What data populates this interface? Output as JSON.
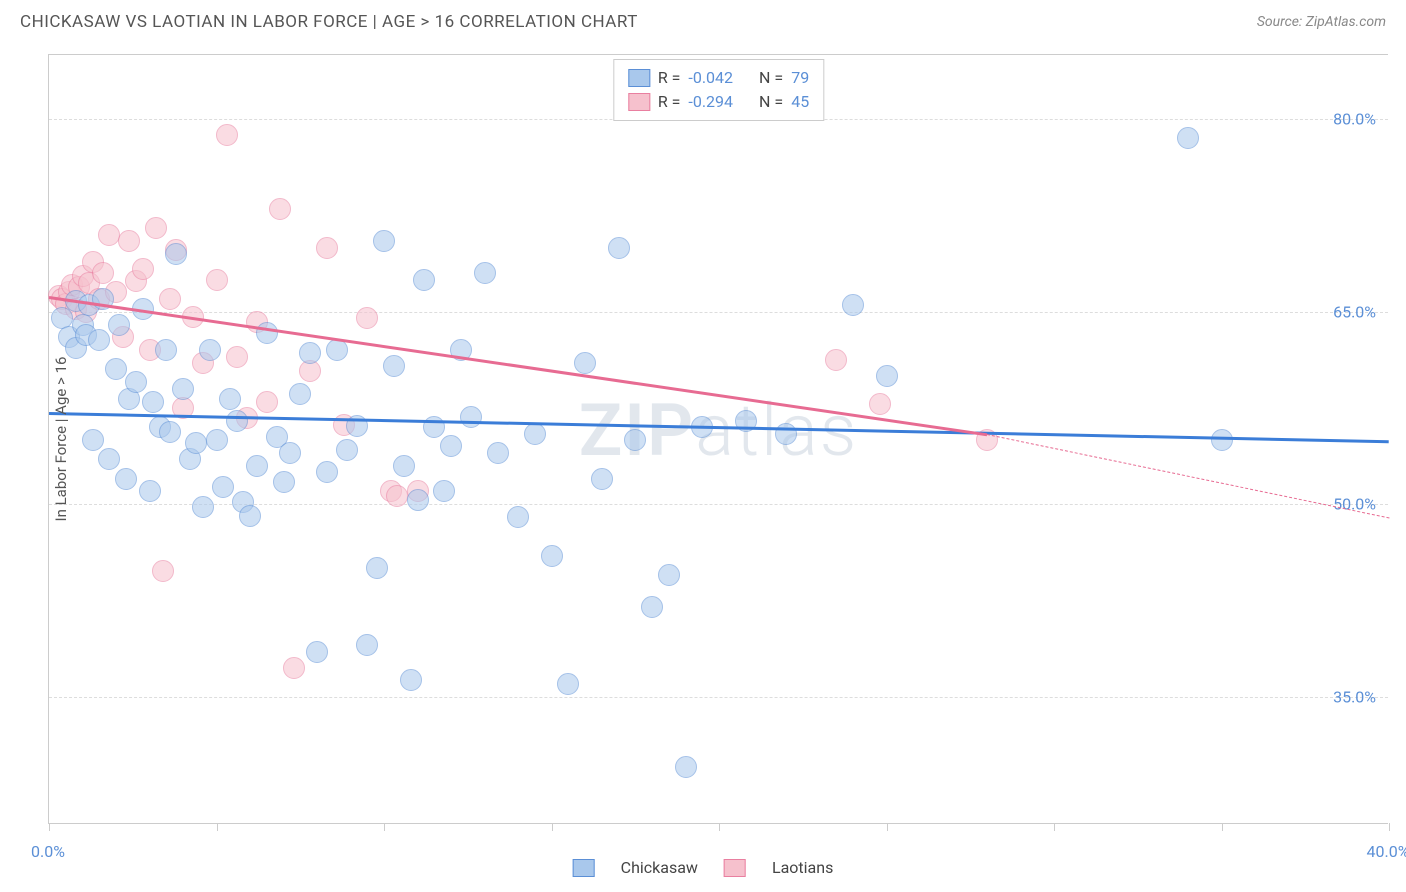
{
  "header": {
    "title": "CHICKASAW VS LAOTIAN IN LABOR FORCE | AGE > 16 CORRELATION CHART",
    "source": "Source: ZipAtlas.com"
  },
  "chart": {
    "type": "scatter",
    "ylabel": "In Labor Force | Age > 16",
    "watermark": "ZIPatlas",
    "background_color": "#ffffff",
    "grid_color": "#dddddd",
    "border_color": "#cccccc",
    "xlim": [
      0,
      40
    ],
    "ylim": [
      25,
      85
    ],
    "xticks": [
      0,
      5,
      10,
      15,
      20,
      25,
      30,
      35,
      40
    ],
    "xtick_labels": {
      "0": "0.0%",
      "40": "40.0%"
    },
    "yticks": [
      35,
      50,
      65,
      80
    ],
    "ytick_labels": {
      "35": "35.0%",
      "50": "50.0%",
      "65": "65.0%",
      "80": "80.0%"
    },
    "point_radius": 11,
    "point_opacity": 0.55,
    "series": {
      "chickasaw": {
        "label": "Chickasaw",
        "fill": "#a9c8ec",
        "stroke": "#5b8fd6",
        "trend_color": "#3b7dd8",
        "trend_width": 3,
        "R": "-0.042",
        "N": "79",
        "trend": {
          "x1": 0,
          "y1": 57.2,
          "x2": 40,
          "y2": 55.0
        },
        "points": [
          [
            0.4,
            64.5
          ],
          [
            0.6,
            63.0
          ],
          [
            0.8,
            65.8
          ],
          [
            0.8,
            62.2
          ],
          [
            1.0,
            64.0
          ],
          [
            1.1,
            63.2
          ],
          [
            1.2,
            65.5
          ],
          [
            1.3,
            55.0
          ],
          [
            1.5,
            62.8
          ],
          [
            1.6,
            66.0
          ],
          [
            1.8,
            53.5
          ],
          [
            2.0,
            60.5
          ],
          [
            2.1,
            64.0
          ],
          [
            2.3,
            52.0
          ],
          [
            2.4,
            58.2
          ],
          [
            2.6,
            59.5
          ],
          [
            2.8,
            65.2
          ],
          [
            3.0,
            51.0
          ],
          [
            3.1,
            58.0
          ],
          [
            3.3,
            56.0
          ],
          [
            3.5,
            62.0
          ],
          [
            3.6,
            55.6
          ],
          [
            3.8,
            69.5
          ],
          [
            4.0,
            59.0
          ],
          [
            4.2,
            53.5
          ],
          [
            4.4,
            54.8
          ],
          [
            4.6,
            49.8
          ],
          [
            4.8,
            62.0
          ],
          [
            5.0,
            55.0
          ],
          [
            5.2,
            51.3
          ],
          [
            5.4,
            58.2
          ],
          [
            5.6,
            56.5
          ],
          [
            5.8,
            50.2
          ],
          [
            6.0,
            49.1
          ],
          [
            6.2,
            53.0
          ],
          [
            6.5,
            63.3
          ],
          [
            6.8,
            55.2
          ],
          [
            7.0,
            51.7
          ],
          [
            7.2,
            54.0
          ],
          [
            7.5,
            58.6
          ],
          [
            7.8,
            61.8
          ],
          [
            8.0,
            38.5
          ],
          [
            8.3,
            52.5
          ],
          [
            8.6,
            62.0
          ],
          [
            8.9,
            54.2
          ],
          [
            9.2,
            56.1
          ],
          [
            9.5,
            39.0
          ],
          [
            9.8,
            45.0
          ],
          [
            10.0,
            70.5
          ],
          [
            10.3,
            60.8
          ],
          [
            10.6,
            53.0
          ],
          [
            10.8,
            36.3
          ],
          [
            11.0,
            50.3
          ],
          [
            11.2,
            67.5
          ],
          [
            11.5,
            56.0
          ],
          [
            11.8,
            51.0
          ],
          [
            12.0,
            54.5
          ],
          [
            12.3,
            62.0
          ],
          [
            12.6,
            56.8
          ],
          [
            13.0,
            68.0
          ],
          [
            13.4,
            54.0
          ],
          [
            14.0,
            49.0
          ],
          [
            14.5,
            55.5
          ],
          [
            15.0,
            46.0
          ],
          [
            15.5,
            36.0
          ],
          [
            16.0,
            61.0
          ],
          [
            16.5,
            52.0
          ],
          [
            17.0,
            70.0
          ],
          [
            17.5,
            55.0
          ],
          [
            18.0,
            42.0
          ],
          [
            18.5,
            44.5
          ],
          [
            19.0,
            29.5
          ],
          [
            19.5,
            56.0
          ],
          [
            20.8,
            56.5
          ],
          [
            22.0,
            55.5
          ],
          [
            24.0,
            65.5
          ],
          [
            25.0,
            60.0
          ],
          [
            34.0,
            78.5
          ],
          [
            35.0,
            55.0
          ]
        ]
      },
      "laotians": {
        "label": "Laotians",
        "fill": "#f6c1cd",
        "stroke": "#e97fa0",
        "trend_color": "#e76b92",
        "trend_width": 3,
        "R": "-0.294",
        "N": "45",
        "trend": {
          "x1": 0,
          "y1": 66.2,
          "x2": 28,
          "y2": 55.5
        },
        "trend_dash": {
          "x1": 28,
          "y1": 55.5,
          "x2": 40,
          "y2": 49.0
        },
        "points": [
          [
            0.3,
            66.2
          ],
          [
            0.4,
            66.0
          ],
          [
            0.5,
            65.6
          ],
          [
            0.6,
            66.5
          ],
          [
            0.7,
            67.1
          ],
          [
            0.8,
            65.2
          ],
          [
            0.9,
            66.9
          ],
          [
            1.0,
            67.8
          ],
          [
            1.1,
            65.0
          ],
          [
            1.2,
            67.2
          ],
          [
            1.3,
            68.9
          ],
          [
            1.5,
            66.0
          ],
          [
            1.6,
            68.0
          ],
          [
            1.8,
            71.0
          ],
          [
            2.0,
            66.5
          ],
          [
            2.2,
            63.0
          ],
          [
            2.4,
            70.5
          ],
          [
            2.6,
            67.4
          ],
          [
            2.8,
            68.3
          ],
          [
            3.0,
            62.0
          ],
          [
            3.2,
            71.5
          ],
          [
            3.4,
            44.8
          ],
          [
            3.6,
            66.0
          ],
          [
            3.8,
            69.8
          ],
          [
            4.0,
            57.5
          ],
          [
            4.3,
            64.6
          ],
          [
            4.6,
            61.0
          ],
          [
            5.0,
            67.5
          ],
          [
            5.3,
            78.8
          ],
          [
            5.6,
            61.5
          ],
          [
            5.9,
            56.7
          ],
          [
            6.2,
            64.2
          ],
          [
            6.5,
            58.0
          ],
          [
            6.9,
            73.0
          ],
          [
            7.3,
            37.2
          ],
          [
            7.8,
            60.4
          ],
          [
            8.3,
            70.0
          ],
          [
            8.8,
            56.2
          ],
          [
            9.5,
            64.5
          ],
          [
            10.2,
            51.0
          ],
          [
            10.4,
            50.6
          ],
          [
            11.0,
            51.0
          ],
          [
            23.5,
            61.2
          ],
          [
            24.8,
            57.8
          ],
          [
            28.0,
            55.0
          ]
        ]
      }
    }
  },
  "stats_box": {
    "rows": [
      {
        "swatch_fill": "#a9c8ec",
        "swatch_stroke": "#5b8fd6",
        "r_label": "R =",
        "r_val": "-0.042",
        "n_label": "N =",
        "n_val": "79"
      },
      {
        "swatch_fill": "#f6c1cd",
        "swatch_stroke": "#e97fa0",
        "r_label": "R =",
        "r_val": "-0.294",
        "n_label": "N =",
        "n_val": "45"
      }
    ]
  },
  "bottom_legend": {
    "items": [
      {
        "swatch_fill": "#a9c8ec",
        "swatch_stroke": "#5b8fd6",
        "label": "Chickasaw"
      },
      {
        "swatch_fill": "#f6c1cd",
        "swatch_stroke": "#e97fa0",
        "label": "Laotians"
      }
    ]
  }
}
